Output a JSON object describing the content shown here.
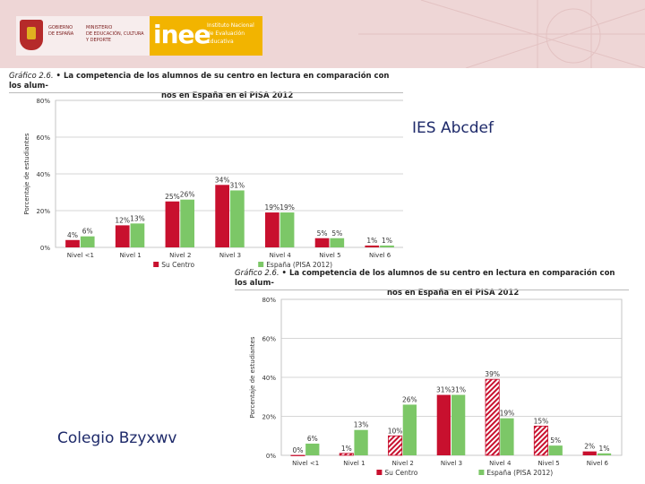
{
  "banner": {
    "gov_lines": [
      "GOBIERNO",
      "DE ESPAÑA"
    ],
    "ministry_lines": [
      "MINISTERIO",
      "DE EDUCACIÓN, CULTURA",
      "Y DEPORTE"
    ],
    "logo": "inee",
    "institute_lines": [
      "Instituto Nacional",
      "de Evaluación",
      "Educativa"
    ]
  },
  "labels": {
    "school1": "IES Abcdef",
    "school2": "Colegio Bzyxwv"
  },
  "chart_data": [
    {
      "type": "bar",
      "title_label": "Gráfico 2.6.",
      "title_line1": "• La competencia de los alumnos de su centro en lectura en comparación con los alum-",
      "title_line2": "nos en España en el PISA 2012",
      "ylabel": "Porcentaje de estudiantes",
      "yticks": [
        "0%",
        "20%",
        "40%",
        "60%",
        "80%"
      ],
      "ylim": [
        0,
        80
      ],
      "categories": [
        "Nivel <1",
        "Nivel 1",
        "Nivel 2",
        "Nivel 3",
        "Nivel 4",
        "Nivel 5",
        "Nivel 6"
      ],
      "series": [
        {
          "name": "Su Centro",
          "color": "#c8102e",
          "values": [
            4,
            12,
            25,
            34,
            19,
            5,
            1
          ],
          "labels": [
            "4%",
            "12%",
            "25%",
            "34%",
            "19%",
            "5%",
            "1%"
          ]
        },
        {
          "name": "España (PISA 2012)",
          "color": "#7cc767",
          "values": [
            6,
            13,
            26,
            31,
            19,
            5,
            1
          ],
          "labels": [
            "6%",
            "13%",
            "26%",
            "31%",
            "19%",
            "5%",
            "1%"
          ]
        }
      ],
      "grid": true,
      "legend": "bottom"
    },
    {
      "type": "bar",
      "title_label": "Gráfico 2.6.",
      "title_line1": "• La competencia de los alumnos de su centro en lectura en comparación con los alum-",
      "title_line2": "nos en España en el PISA 2012",
      "ylabel": "Porcentaje de estudiantes",
      "yticks": [
        "0%",
        "20%",
        "40%",
        "60%",
        "80%"
      ],
      "ylim": [
        0,
        80
      ],
      "categories": [
        "Nivel <1",
        "Nivel 1",
        "Nivel 2",
        "Nivel 3",
        "Nivel 4",
        "Nivel 5",
        "Nivel 6"
      ],
      "series": [
        {
          "name": "Su Centro",
          "color": "#c8102e",
          "values": [
            0,
            1,
            10,
            31,
            39,
            15,
            2
          ],
          "labels": [
            "0%",
            "1%",
            "10%",
            "31%",
            "39%",
            "15%",
            "2%"
          ],
          "hatched": [
            true,
            true,
            true,
            false,
            true,
            true,
            false
          ]
        },
        {
          "name": "España (PISA 2012)",
          "color": "#7cc767",
          "values": [
            6,
            13,
            26,
            31,
            19,
            5,
            1
          ],
          "labels": [
            "6%",
            "13%",
            "26%",
            "31%",
            "19%",
            "5%",
            "1%"
          ]
        }
      ],
      "grid": true,
      "legend": "bottom"
    }
  ]
}
